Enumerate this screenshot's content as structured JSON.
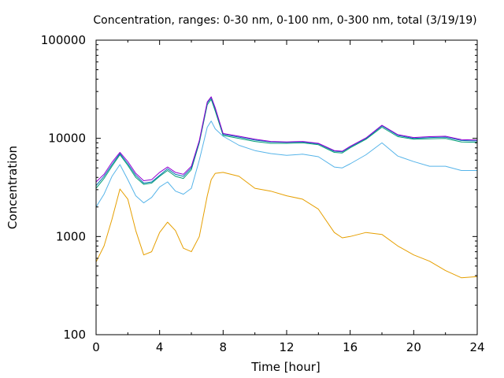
{
  "chart_data": {
    "type": "line",
    "title": "Concentration, ranges: 0-30 nm, 0-100 nm, 0-300 nm, total (3/19/19)",
    "xlabel": "Time [hour]",
    "ylabel": "Concentration",
    "xlim": [
      0,
      24
    ],
    "ylim": [
      100,
      100000
    ],
    "yscale": "log",
    "grid": false,
    "legend": "none",
    "x_ticks": [
      0,
      4,
      8,
      12,
      16,
      20,
      24
    ],
    "x_tick_labels": [
      "0",
      "4",
      "8",
      "12",
      "16",
      "20",
      "24"
    ],
    "y_ticks": [
      100,
      1000,
      10000,
      100000
    ],
    "y_tick_labels": [
      "100",
      "1000",
      "10000",
      "100000"
    ],
    "x": [
      0,
      0.5,
      1,
      1.5,
      2,
      2.5,
      3,
      3.5,
      4,
      4.5,
      5,
      5.5,
      6,
      6.5,
      7,
      7.25,
      7.5,
      8,
      9,
      10,
      11,
      12,
      13,
      14,
      15,
      15.5,
      16,
      17,
      18,
      19,
      20,
      21,
      22,
      23,
      24
    ],
    "series": [
      {
        "color": "#e69f00",
        "values": [
          550,
          800,
          1500,
          3050,
          2400,
          1150,
          650,
          700,
          1100,
          1400,
          1150,
          760,
          700,
          1000,
          2600,
          3800,
          4400,
          4500,
          4100,
          3100,
          2900,
          2600,
          2400,
          1900,
          1100,
          970,
          1000,
          1100,
          1050,
          800,
          650,
          560,
          450,
          380,
          390
        ]
      },
      {
        "color": "#56b4e9",
        "values": [
          2000,
          2700,
          4100,
          5400,
          3800,
          2600,
          2200,
          2500,
          3200,
          3600,
          2900,
          2700,
          3100,
          6000,
          13000,
          15000,
          12500,
          10500,
          8500,
          7500,
          7000,
          6700,
          6900,
          6500,
          5100,
          5000,
          5500,
          6800,
          9000,
          6600,
          5800,
          5200,
          5200,
          4700,
          4700
        ]
      },
      {
        "color": "#009e73",
        "values": [
          3100,
          3900,
          5200,
          6800,
          5300,
          4000,
          3400,
          3500,
          4100,
          4700,
          4100,
          3900,
          4800,
          9000,
          22000,
          25000,
          19000,
          10700,
          10000,
          9300,
          8900,
          8900,
          9000,
          8600,
          7200,
          7100,
          8000,
          9800,
          13000,
          10400,
          9800,
          9900,
          10000,
          9200,
          9100
        ]
      },
      {
        "color": "#0072b2",
        "values": [
          3300,
          4100,
          5400,
          7000,
          5500,
          4200,
          3500,
          3600,
          4200,
          4900,
          4300,
          4100,
          5000,
          9300,
          23000,
          26000,
          20000,
          11000,
          10300,
          9600,
          9200,
          9100,
          9200,
          8800,
          7400,
          7300,
          8200,
          10000,
          13400,
          10700,
          10000,
          10200,
          10300,
          9500,
          9400
        ]
      },
      {
        "color": "#9400d3",
        "values": [
          3600,
          4300,
          5700,
          7200,
          5800,
          4400,
          3700,
          3800,
          4500,
          5100,
          4500,
          4300,
          5200,
          9500,
          23500,
          26500,
          20500,
          11200,
          10500,
          9800,
          9300,
          9200,
          9300,
          8900,
          7500,
          7400,
          8300,
          10100,
          13600,
          10900,
          10200,
          10400,
          10500,
          9700,
          9600
        ]
      }
    ]
  }
}
